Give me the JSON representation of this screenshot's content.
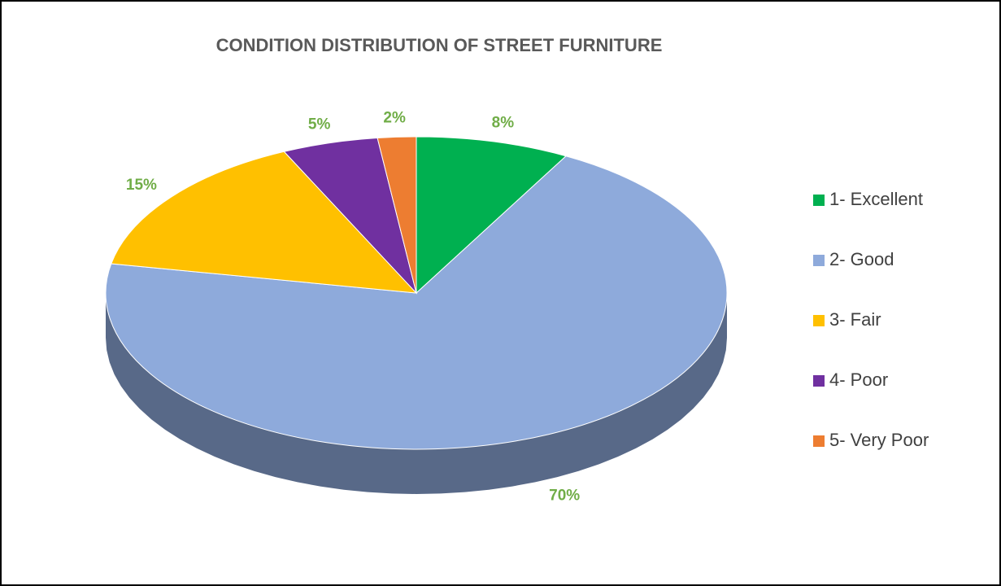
{
  "chart_data": {
    "type": "pie",
    "title": "CONDITION DISTRIBUTION OF STREET FURNITURE",
    "categories": [
      "1- Excellent",
      "2- Good",
      "3- Fair",
      "4- Poor",
      "5- Very Poor"
    ],
    "values": [
      8,
      70,
      15,
      5,
      2
    ],
    "value_labels": [
      "8%",
      "70%",
      "15%",
      "5%",
      "2%"
    ],
    "colors": [
      "#00b050",
      "#8eaadb",
      "#ffc000",
      "#7030a0",
      "#ed7d31"
    ],
    "legend": "right"
  }
}
